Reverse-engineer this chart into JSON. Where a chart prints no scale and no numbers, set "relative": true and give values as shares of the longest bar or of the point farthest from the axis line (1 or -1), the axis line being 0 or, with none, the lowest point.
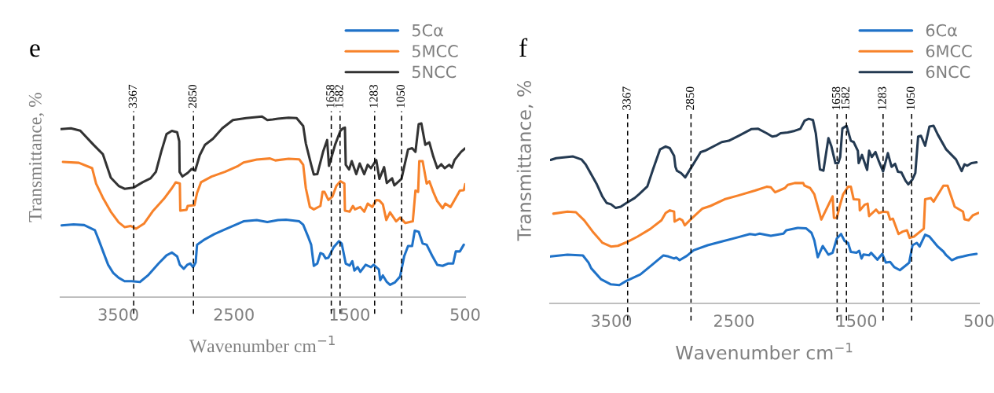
{
  "chart_data": [
    {
      "type": "line",
      "relative": true,
      "xlabel": "Wavenumber cm$^{−1}$",
      "ylabel": "Transmittance, %",
      "annotations": [
        "e"
      ],
      "xlim": [
        4000,
        500
      ],
      "xticks": [
        3500,
        2500,
        1500,
        500
      ],
      "grid": false,
      "legend": "top right",
      "marker": "none",
      "line_style": "solid",
      "ref_lines": [
        {
          "axis": "x",
          "value": 3367,
          "label": "3367",
          "color": "#000000",
          "line_style": "dashed"
        },
        {
          "axis": "x",
          "value": 2850,
          "label": "2850",
          "color": "#000000",
          "line_style": "dashed"
        },
        {
          "axis": "x",
          "value": 1658,
          "label": "1658",
          "color": "#000000",
          "line_style": "dashed"
        },
        {
          "axis": "x",
          "value": 1582,
          "label": "1582",
          "color": "#000000",
          "line_style": "dashed"
        },
        {
          "axis": "x",
          "value": 1283,
          "label": "1283",
          "color": "#000000",
          "line_style": "dashed"
        },
        {
          "axis": "x",
          "value": 1050,
          "label": "1050",
          "color": "#000000",
          "line_style": "dashed"
        }
      ],
      "series": [
        {
          "name": "5Cα",
          "color": "#1f72c8",
          "x": [
            3990,
            3887,
            3795,
            3703,
            3669,
            3623,
            3588,
            3543,
            3497,
            3446,
            3382,
            3313,
            3244,
            3152,
            3083,
            3037,
            2991,
            2968,
            2934,
            2904,
            2877,
            2854,
            2831,
            2819,
            2762,
            2670,
            2578,
            2417,
            2303,
            2211,
            2119,
            2050,
            1935,
            1901,
            1855,
            1832,
            1809,
            1779,
            1752,
            1729,
            1706,
            1683,
            1637,
            1591,
            1568,
            1533,
            1499,
            1476,
            1458,
            1430,
            1407,
            1361,
            1315,
            1292,
            1246,
            1235,
            1212,
            1178,
            1150,
            1109,
            1063,
            1028,
            994,
            959,
            936,
            902,
            868,
            833,
            787,
            741,
            695,
            649,
            604,
            581,
            546,
            512
          ],
          "values": [
            0.397,
            0.403,
            0.399,
            0.371,
            0.316,
            0.238,
            0.179,
            0.133,
            0.107,
            0.088,
            0.088,
            0.084,
            0.12,
            0.186,
            0.231,
            0.247,
            0.225,
            0.179,
            0.157,
            0.179,
            0.186,
            0.166,
            0.192,
            0.29,
            0.316,
            0.349,
            0.375,
            0.42,
            0.427,
            0.416,
            0.427,
            0.429,
            0.42,
            0.401,
            0.329,
            0.29,
            0.173,
            0.186,
            0.244,
            0.238,
            0.214,
            0.218,
            0.277,
            0.31,
            0.297,
            0.186,
            0.175,
            0.199,
            0.147,
            0.166,
            0.14,
            0.179,
            0.166,
            0.179,
            0.153,
            0.094,
            0.12,
            0.084,
            0.068,
            0.081,
            0.114,
            0.225,
            0.283,
            0.283,
            0.368,
            0.362,
            0.297,
            0.29,
            0.231,
            0.179,
            0.173,
            0.186,
            0.186,
            0.253,
            0.253,
            0.29
          ]
        },
        {
          "name": "5MCC",
          "color": "#f7822a",
          "x": [
            3979,
            3841,
            3726,
            3692,
            3634,
            3565,
            3497,
            3446,
            3393,
            3347,
            3278,
            3198,
            3106,
            3037,
            3003,
            2968,
            2964,
            2911,
            2900,
            2842,
            2819,
            2785,
            2693,
            2578,
            2463,
            2417,
            2303,
            2188,
            2142,
            2027,
            1935,
            1901,
            1878,
            1843,
            1809,
            1752,
            1733,
            1717,
            1683,
            1648,
            1614,
            1579,
            1545,
            1540,
            1499,
            1471,
            1453,
            1407,
            1373,
            1343,
            1304,
            1269,
            1242,
            1212,
            1182,
            1150,
            1097,
            1063,
            1017,
            953,
            930,
            907,
            897,
            868,
            833,
            810,
            776,
            741,
            695,
            672,
            627,
            592,
            546,
            512,
            500
          ],
          "values": [
            0.749,
            0.744,
            0.714,
            0.629,
            0.551,
            0.473,
            0.414,
            0.388,
            0.394,
            0.379,
            0.407,
            0.479,
            0.544,
            0.603,
            0.636,
            0.629,
            0.479,
            0.483,
            0.505,
            0.509,
            0.577,
            0.636,
            0.668,
            0.694,
            0.727,
            0.746,
            0.762,
            0.768,
            0.757,
            0.766,
            0.763,
            0.733,
            0.603,
            0.499,
            0.486,
            0.505,
            0.583,
            0.583,
            0.538,
            0.557,
            0.616,
            0.642,
            0.629,
            0.479,
            0.473,
            0.505,
            0.486,
            0.499,
            0.473,
            0.518,
            0.499,
            0.538,
            0.535,
            0.514,
            0.427,
            0.47,
            0.42,
            0.44,
            0.41,
            0.42,
            0.59,
            0.583,
            0.753,
            0.753,
            0.629,
            0.642,
            0.583,
            0.531,
            0.492,
            0.518,
            0.499,
            0.538,
            0.59,
            0.592,
            0.626
          ]
        },
        {
          "name": "5NCC",
          "color": "#333333",
          "x": [
            3997,
            3910,
            3829,
            3715,
            3634,
            3565,
            3497,
            3446,
            3370,
            3290,
            3221,
            3175,
            3129,
            3083,
            3037,
            2991,
            2973,
            2970,
            2946,
            2900,
            2865,
            2835,
            2796,
            2750,
            2681,
            2601,
            2509,
            2394,
            2257,
            2211,
            2165,
            2119,
            2027,
            1958,
            1901,
            1878,
            1832,
            1809,
            1779,
            1729,
            1694,
            1678,
            1625,
            1579,
            1556,
            1540,
            1533,
            1504,
            1481,
            1442,
            1412,
            1373,
            1343,
            1315,
            1269,
            1242,
            1201,
            1178,
            1132,
            1113,
            1051,
            994,
            959,
            930,
            902,
            879,
            845,
            810,
            776,
            741,
            707,
            677,
            638,
            615,
            592,
            535,
            500
          ],
          "values": [
            0.931,
            0.935,
            0.922,
            0.844,
            0.792,
            0.662,
            0.616,
            0.6,
            0.606,
            0.636,
            0.658,
            0.694,
            0.805,
            0.903,
            0.921,
            0.913,
            0.864,
            0.694,
            0.668,
            0.688,
            0.71,
            0.701,
            0.786,
            0.844,
            0.877,
            0.935,
            0.981,
            0.992,
            1,
            0.981,
            0.984,
            0.988,
            0.994,
            0.992,
            0.948,
            0.851,
            0.733,
            0.679,
            0.681,
            0.805,
            0.87,
            0.727,
            0.844,
            0.922,
            0.935,
            0.939,
            0.733,
            0.707,
            0.753,
            0.681,
            0.74,
            0.681,
            0.733,
            0.714,
            0.759,
            0.655,
            0.72,
            0.632,
            0.658,
            0.619,
            0.655,
            0.818,
            0.825,
            0.805,
            0.958,
            0.962,
            0.844,
            0.857,
            0.779,
            0.714,
            0.736,
            0.714,
            0.733,
            0.718,
            0.759,
            0.805,
            0.824
          ]
        }
      ]
    },
    {
      "type": "line",
      "relative": true,
      "xlabel": "Wavenumber cm$^{−1}$",
      "ylabel": "Transmittance, %",
      "annotations": [
        "f"
      ],
      "xlim": [
        4000,
        500
      ],
      "xticks": [
        3500,
        2500,
        1500,
        500
      ],
      "grid": false,
      "legend": "top right",
      "marker": "none",
      "line_style": "solid",
      "ref_lines": [
        {
          "axis": "x",
          "value": 3367,
          "label": "3367",
          "color": "#000000",
          "line_style": "dashed"
        },
        {
          "axis": "x",
          "value": 2850,
          "label": "2850",
          "color": "#000000",
          "line_style": "dashed"
        },
        {
          "axis": "x",
          "value": 1658,
          "label": "1658",
          "color": "#000000",
          "line_style": "dashed"
        },
        {
          "axis": "x",
          "value": 1582,
          "label": "1582",
          "color": "#000000",
          "line_style": "dashed"
        },
        {
          "axis": "x",
          "value": 1283,
          "label": "1283",
          "color": "#000000",
          "line_style": "dashed"
        },
        {
          "axis": "x",
          "value": 1050,
          "label": "1050",
          "color": "#000000",
          "line_style": "dashed"
        }
      ],
      "series": [
        {
          "name": "6Cα",
          "color": "#1f72c8",
          "x": [
            3995,
            3858,
            3732,
            3686,
            3664,
            3583,
            3503,
            3435,
            3377,
            3263,
            3171,
            3075,
            3034,
            2988,
            2970,
            2943,
            2885,
            2828,
            2714,
            2599,
            2485,
            2370,
            2324,
            2290,
            2199,
            2096,
            2073,
            1981,
            1912,
            1867,
            1844,
            1816,
            1775,
            1729,
            1695,
            1661,
            1626,
            1597,
            1569,
            1546,
            1500,
            1478,
            1459,
            1443,
            1397,
            1381,
            1329,
            1290,
            1260,
            1226,
            1191,
            1146,
            1088,
            1070,
            1043,
            1008,
            985,
            940,
            905,
            837,
            791,
            768,
            722,
            676,
            631,
            585,
            521
          ],
          "values": [
            0.254,
            0.264,
            0.26,
            0.221,
            0.19,
            0.13,
            0.103,
            0.099,
            0.122,
            0.157,
            0.207,
            0.26,
            0.254,
            0.243,
            0.248,
            0.234,
            0.257,
            0.288,
            0.315,
            0.335,
            0.355,
            0.376,
            0.372,
            0.378,
            0.366,
            0.378,
            0.396,
            0.409,
            0.407,
            0.382,
            0.342,
            0.25,
            0.311,
            0.264,
            0.274,
            0.351,
            0.376,
            0.338,
            0.328,
            0.279,
            0.275,
            0.285,
            0.243,
            0.265,
            0.261,
            0.274,
            0.237,
            0.268,
            0.221,
            0.225,
            0.196,
            0.18,
            0.211,
            0.221,
            0.315,
            0.328,
            0.308,
            0.372,
            0.362,
            0.308,
            0.281,
            0.261,
            0.234,
            0.248,
            0.254,
            0.262,
            0.268
          ]
        },
        {
          "name": "6MCC",
          "color": "#f7822a",
          "x": [
            3973,
            3858,
            3789,
            3721,
            3652,
            3572,
            3503,
            3446,
            3377,
            3286,
            3183,
            3091,
            3057,
            3023,
            2988,
            2984,
            2943,
            2920,
            2901,
            2851,
            2759,
            2691,
            2576,
            2462,
            2324,
            2233,
            2199,
            2164,
            2084,
            2061,
            2004,
            1935,
            1924,
            1878,
            1844,
            1787,
            1695,
            1684,
            1661,
            1638,
            1610,
            1569,
            1546,
            1523,
            1477,
            1473,
            1432,
            1409,
            1397,
            1340,
            1317,
            1283,
            1244,
            1226,
            1203,
            1157,
            1123,
            1088,
            1066,
            1031,
            951,
            940,
            894,
            871,
            791,
            757,
            699,
            631,
            619,
            585,
            551,
            505
          ],
          "values": [
            0.486,
            0.497,
            0.494,
            0.45,
            0.389,
            0.328,
            0.308,
            0.312,
            0.331,
            0.362,
            0.403,
            0.45,
            0.49,
            0.504,
            0.497,
            0.443,
            0.459,
            0.45,
            0.423,
            0.456,
            0.513,
            0.528,
            0.564,
            0.585,
            0.612,
            0.632,
            0.629,
            0.602,
            0.625,
            0.642,
            0.652,
            0.652,
            0.638,
            0.625,
            0.591,
            0.454,
            0.58,
            0.463,
            0.463,
            0.524,
            0.589,
            0.632,
            0.632,
            0.564,
            0.562,
            0.504,
            0.535,
            0.54,
            0.473,
            0.508,
            0.49,
            0.497,
            0.494,
            0.454,
            0.459,
            0.376,
            0.389,
            0.396,
            0.355,
            0.362,
            0.405,
            0.564,
            0.571,
            0.551,
            0.638,
            0.638,
            0.524,
            0.497,
            0.456,
            0.45,
            0.477,
            0.49
          ]
        },
        {
          "name": "6NCC",
          "color": "#243a52",
          "x": [
            3995,
            3950,
            3812,
            3744,
            3709,
            3664,
            3618,
            3572,
            3538,
            3503,
            3464,
            3423,
            3377,
            3309,
            3274,
            3206,
            3160,
            3103,
            3057,
            3023,
            2988,
            2977,
            2965,
            2931,
            2897,
            2851,
            2771,
            2736,
            2599,
            2542,
            2462,
            2359,
            2302,
            2233,
            2187,
            2153,
            2119,
            2061,
            2004,
            1958,
            1924,
            1890,
            1855,
            1832,
            1798,
            1770,
            1729,
            1706,
            1672,
            1649,
            1633,
            1615,
            1581,
            1546,
            1523,
            1489,
            1482,
            1455,
            1413,
            1397,
            1375,
            1345,
            1317,
            1283,
            1244,
            1214,
            1185,
            1162,
            1134,
            1100,
            1077,
            1043,
            1020,
            997,
            974,
            940,
            905,
            871,
            837,
            768,
            688,
            642,
            619,
            596,
            562,
            521
          ],
          "values": [
            0.777,
            0.787,
            0.796,
            0.78,
            0.753,
            0.699,
            0.645,
            0.578,
            0.544,
            0.537,
            0.517,
            0.524,
            0.544,
            0.571,
            0.591,
            0.634,
            0.726,
            0.834,
            0.85,
            0.841,
            0.8,
            0.74,
            0.719,
            0.706,
            0.683,
            0.733,
            0.82,
            0.827,
            0.874,
            0.881,
            0.908,
            0.944,
            0.946,
            0.922,
            0.904,
            0.908,
            0.922,
            0.926,
            0.935,
            0.946,
            0.989,
            1,
            0.993,
            0.922,
            0.726,
            0.719,
            0.895,
            0.854,
            0.76,
            0.76,
            0.793,
            0.948,
            0.962,
            0.881,
            0.874,
            0.827,
            0.76,
            0.804,
            0.723,
            0.827,
            0.793,
            0.82,
            0.769,
            0.715,
            0.814,
            0.74,
            0.756,
            0.713,
            0.71,
            0.665,
            0.645,
            0.672,
            0.706,
            0.904,
            0.908,
            0.854,
            0.958,
            0.962,
            0.915,
            0.834,
            0.78,
            0.717,
            0.753,
            0.746,
            0.76,
            0.764
          ]
        }
      ]
    }
  ]
}
